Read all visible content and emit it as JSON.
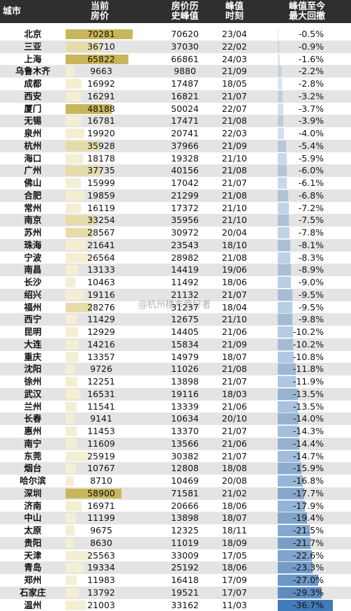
{
  "header": {
    "city": "城市",
    "current_price": "当前\n房价",
    "peak_price": "房价历\n史峰值",
    "peak_time": "峰值\n时刻",
    "max_drawdown": "峰值至今\n最大回撤"
  },
  "watermark": "@杭州楼市爱好者",
  "colors": {
    "bar_gold": "#c9b65a",
    "bar_pale": "#f4efd2",
    "drawdown_blue": "#3f79b9",
    "header_bg": "#2f2f2f"
  },
  "rows": [
    {
      "city": "北京",
      "price": "70281",
      "peak": "70620",
      "time": "23/04",
      "drawdown": "-0.5%"
    },
    {
      "city": "三亚",
      "price": "36710",
      "peak": "37030",
      "time": "22/02",
      "drawdown": "-0.9%"
    },
    {
      "city": "上海",
      "price": "65822",
      "peak": "66861",
      "time": "24/03",
      "drawdown": "-1.6%"
    },
    {
      "city": "乌鲁木齐",
      "price": "9663",
      "peak": "9880",
      "time": "21/09",
      "drawdown": "-2.2%"
    },
    {
      "city": "成都",
      "price": "16992",
      "peak": "17487",
      "time": "18/05",
      "drawdown": "-2.8%"
    },
    {
      "city": "西安",
      "price": "16291",
      "peak": "16821",
      "time": "21/07",
      "drawdown": "-3.2%"
    },
    {
      "city": "厦门",
      "price": "48188",
      "peak": "50024",
      "time": "22/07",
      "drawdown": "-3.7%"
    },
    {
      "city": "无锡",
      "price": "16781",
      "peak": "17471",
      "time": "21/08",
      "drawdown": "-3.9%"
    },
    {
      "city": "泉州",
      "price": "19920",
      "peak": "20741",
      "time": "22/03",
      "drawdown": "-4.0%"
    },
    {
      "city": "杭州",
      "price": "35928",
      "peak": "37966",
      "time": "21/09",
      "drawdown": "-5.4%"
    },
    {
      "city": "海口",
      "price": "18178",
      "peak": "19328",
      "time": "21/10",
      "drawdown": "-5.9%"
    },
    {
      "city": "广州",
      "price": "37735",
      "peak": "40156",
      "time": "21/08",
      "drawdown": "-6.0%"
    },
    {
      "city": "佛山",
      "price": "15999",
      "peak": "17042",
      "time": "21/07",
      "drawdown": "-6.1%"
    },
    {
      "city": "合肥",
      "price": "19859",
      "peak": "21299",
      "time": "21/08",
      "drawdown": "-6.8%"
    },
    {
      "city": "常州",
      "price": "16119",
      "peak": "17372",
      "time": "21/10",
      "drawdown": "-7.2%"
    },
    {
      "city": "南京",
      "price": "33254",
      "peak": "35956",
      "time": "21/10",
      "drawdown": "-7.5%"
    },
    {
      "city": "苏州",
      "price": "28567",
      "peak": "30972",
      "time": "20/04",
      "drawdown": "-7.8%"
    },
    {
      "city": "珠海",
      "price": "21641",
      "peak": "23543",
      "time": "18/10",
      "drawdown": "-8.1%"
    },
    {
      "city": "宁波",
      "price": "26564",
      "peak": "28982",
      "time": "21/08",
      "drawdown": "-8.3%"
    },
    {
      "city": "南昌",
      "price": "13133",
      "peak": "14419",
      "time": "19/06",
      "drawdown": "-8.9%"
    },
    {
      "city": "长沙",
      "price": "10463",
      "peak": "11492",
      "time": "18/06",
      "drawdown": "-9.0%"
    },
    {
      "city": "绍兴",
      "price": "19116",
      "peak": "21132",
      "time": "21/07",
      "drawdown": "-9.5%"
    },
    {
      "city": "福州",
      "price": "28276",
      "peak": "31237",
      "time": "18/04",
      "drawdown": "-9.5%"
    },
    {
      "city": "西宁",
      "price": "11429",
      "peak": "12675",
      "time": "21/10",
      "drawdown": "-9.8%"
    },
    {
      "city": "昆明",
      "price": "12929",
      "peak": "14405",
      "time": "21/06",
      "drawdown": "-10.2%"
    },
    {
      "city": "大连",
      "price": "14216",
      "peak": "15834",
      "time": "21/09",
      "drawdown": "-10.2%"
    },
    {
      "city": "重庆",
      "price": "13357",
      "peak": "14979",
      "time": "18/07",
      "drawdown": "-10.8%"
    },
    {
      "city": "沈阳",
      "price": "9726",
      "peak": "11026",
      "time": "21/08",
      "drawdown": "-11.8%"
    },
    {
      "city": "徐州",
      "price": "12251",
      "peak": "13898",
      "time": "21/07",
      "drawdown": "-11.9%"
    },
    {
      "city": "武汉",
      "price": "16531",
      "peak": "19116",
      "time": "18/03",
      "drawdown": "-13.5%"
    },
    {
      "city": "兰州",
      "price": "11541",
      "peak": "13339",
      "time": "21/06",
      "drawdown": "-13.5%"
    },
    {
      "city": "长春",
      "price": "9141",
      "peak": "10634",
      "time": "20/10",
      "drawdown": "-14.0%"
    },
    {
      "city": "惠州",
      "price": "11453",
      "peak": "13370",
      "time": "21/07",
      "drawdown": "-14.3%"
    },
    {
      "city": "南宁",
      "price": "11609",
      "peak": "13566",
      "time": "21/06",
      "drawdown": "-14.4%"
    },
    {
      "city": "东莞",
      "price": "25919",
      "peak": "30382",
      "time": "21/07",
      "drawdown": "-14.7%"
    },
    {
      "city": "烟台",
      "price": "10767",
      "peak": "12808",
      "time": "18/08",
      "drawdown": "-15.9%"
    },
    {
      "city": "哈尔滨",
      "price": "8710",
      "peak": "10469",
      "time": "20/08",
      "drawdown": "-16.8%"
    },
    {
      "city": "深圳",
      "price": "58900",
      "peak": "71581",
      "time": "21/02",
      "drawdown": "-17.7%"
    },
    {
      "city": "济南",
      "price": "16971",
      "peak": "20666",
      "time": "18/06",
      "drawdown": "-17.9%"
    },
    {
      "city": "中山",
      "price": "11199",
      "peak": "13898",
      "time": "18/07",
      "drawdown": "-19.4%"
    },
    {
      "city": "太原",
      "price": "9675",
      "peak": "12325",
      "time": "18/11",
      "drawdown": "-21.5%"
    },
    {
      "city": "贵阳",
      "price": "8630",
      "peak": "11019",
      "time": "18/09",
      "drawdown": "-21.7%"
    },
    {
      "city": "天津",
      "price": "25563",
      "peak": "33009",
      "time": "17/05",
      "drawdown": "-22.6%"
    },
    {
      "city": "青岛",
      "price": "19334",
      "peak": "25192",
      "time": "18/06",
      "drawdown": "-23.3%"
    },
    {
      "city": "郑州",
      "price": "11983",
      "peak": "16418",
      "time": "17/09",
      "drawdown": "-27.0%"
    },
    {
      "city": "石家庄",
      "price": "13792",
      "peak": "19521",
      "time": "17/07",
      "drawdown": "-29.3%"
    },
    {
      "city": "温州",
      "price": "21003",
      "peak": "33162",
      "time": "11/03",
      "drawdown": "-36.7%"
    }
  ]
}
